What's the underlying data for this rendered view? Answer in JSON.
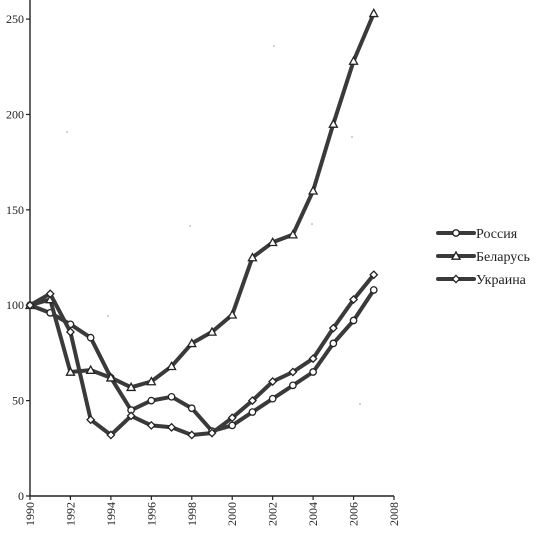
{
  "chart_data": {
    "type": "line",
    "title": "",
    "xlabel": "",
    "ylabel": "",
    "xlim": [
      1990,
      2008
    ],
    "ylim": [
      0,
      260
    ],
    "x_ticks": [
      "1990",
      "1992",
      "1994",
      "1996",
      "1998",
      "2000",
      "2002",
      "2004",
      "2006",
      "2008"
    ],
    "y_ticks": [
      "0",
      "50",
      "100",
      "150",
      "200",
      "250"
    ],
    "grid": false,
    "legend": "right",
    "x": [
      1990,
      1991,
      1992,
      1993,
      1994,
      1995,
      1996,
      1997,
      1998,
      1999,
      2000,
      2001,
      2002,
      2003,
      2004,
      2005,
      2006,
      2007
    ],
    "series": [
      {
        "name": "Россия",
        "marker": "circle",
        "color": "#3a3a3a",
        "values": [
          100,
          96,
          90,
          83,
          62,
          45,
          50,
          52,
          46,
          34,
          37,
          44,
          51,
          58,
          65,
          80,
          92,
          108
        ]
      },
      {
        "name": "Беларусь",
        "marker": "triangle",
        "color": "#3a3a3a",
        "values": [
          100,
          103,
          65,
          66,
          62,
          57,
          60,
          68,
          80,
          86,
          95,
          125,
          133,
          137,
          160,
          195,
          228,
          253
        ]
      },
      {
        "name": "Украина",
        "marker": "diamond",
        "color": "#3a3a3a",
        "values": [
          100,
          106,
          86,
          40,
          32,
          42,
          37,
          36,
          32,
          33,
          41,
          50,
          60,
          65,
          72,
          88,
          103,
          116
        ]
      }
    ]
  }
}
